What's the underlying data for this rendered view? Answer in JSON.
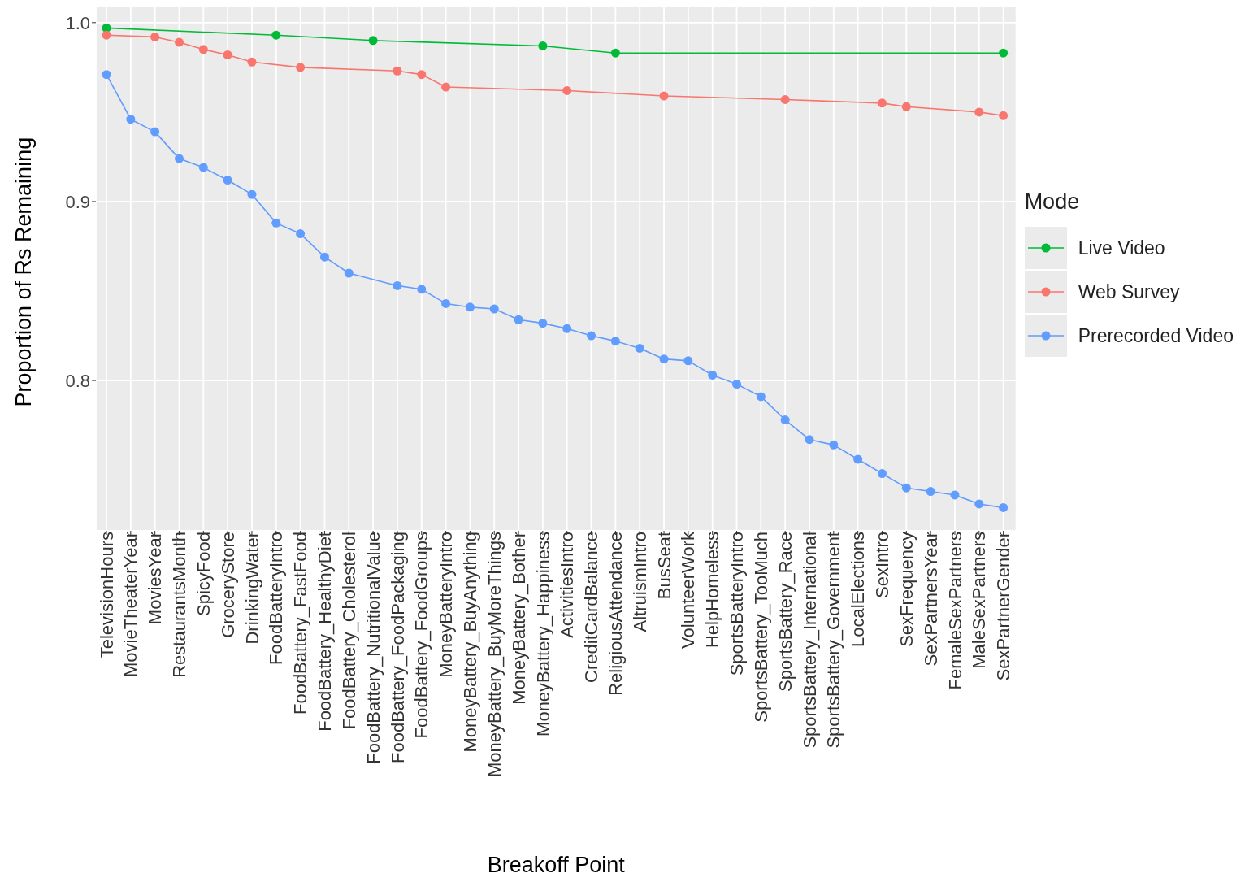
{
  "chart_data": {
    "type": "line",
    "xlabel": "Breakoff Point",
    "ylabel": "Proportion of Rs Remaining",
    "legend_title": "Mode",
    "categories": [
      "TelevisionHours",
      "MovieTheaterYear",
      "MoviesYear",
      "RestaurantsMonth",
      "SpicyFood",
      "GroceryStore",
      "DrinkingWater",
      "FoodBatteryIntro",
      "FoodBattery_FastFood",
      "FoodBattery_HealthyDiet",
      "FoodBattery_Cholesterol",
      "FoodBattery_NutritionalValue",
      "FoodBattery_FoodPackaging",
      "FoodBattery_FoodGroups",
      "MoneyBatteryIntro",
      "MoneyBattery_BuyAnything",
      "MoneyBattery_BuyMoreThings",
      "MoneyBattery_Bother",
      "MoneyBattery_Happiness",
      "ActivitiesIntro",
      "CreditCardBalance",
      "ReligiousAttendance",
      "AltruismIntro",
      "BusSeat",
      "VolunteerWork",
      "HelpHomeless",
      "SportsBatteryIntro",
      "SportsBattery_TooMuch",
      "SportsBattery_Race",
      "SportsBattery_International",
      "SportsBattery_Government",
      "LocalElections",
      "SexIntro",
      "SexFrequency",
      "SexPartnersYear",
      "FemaleSexPartners",
      "MaleSexPartners",
      "SexPartnerGender"
    ],
    "series": [
      {
        "name": "Live Video",
        "color": "#00ba38",
        "values": [
          0.997,
          null,
          null,
          null,
          null,
          null,
          null,
          0.993,
          null,
          null,
          null,
          0.99,
          null,
          null,
          null,
          null,
          null,
          null,
          0.987,
          null,
          null,
          0.983,
          null,
          null,
          null,
          null,
          null,
          null,
          null,
          null,
          null,
          null,
          null,
          null,
          null,
          null,
          null,
          0.983
        ]
      },
      {
        "name": "Web Survey",
        "color": "#f8766d",
        "values": [
          0.993,
          null,
          0.992,
          0.989,
          0.985,
          0.982,
          0.978,
          null,
          0.975,
          null,
          null,
          null,
          0.973,
          0.971,
          0.964,
          null,
          null,
          null,
          null,
          0.962,
          null,
          null,
          null,
          0.959,
          null,
          null,
          null,
          null,
          0.957,
          null,
          null,
          null,
          0.955,
          0.953,
          null,
          null,
          0.95,
          0.948
        ]
      },
      {
        "name": "Prerecorded Video",
        "color": "#619cff",
        "values": [
          0.971,
          0.946,
          0.939,
          0.924,
          0.919,
          0.912,
          0.904,
          0.888,
          0.882,
          0.869,
          0.86,
          null,
          0.853,
          0.851,
          0.843,
          0.841,
          0.84,
          0.834,
          0.832,
          0.829,
          0.825,
          0.822,
          0.818,
          0.812,
          0.811,
          0.803,
          0.798,
          0.791,
          0.778,
          0.767,
          0.764,
          0.756,
          0.748,
          0.74,
          0.738,
          0.736,
          0.731,
          0.729
        ]
      }
    ],
    "ylim": [
      0.716,
      1.009
    ],
    "yticks": [
      {
        "value": 0.8,
        "label": "0.8"
      },
      {
        "value": 0.9,
        "label": "0.9"
      },
      {
        "value": 1.0,
        "label": "1.0"
      }
    ],
    "grid": true,
    "legend": "right",
    "marker": "circle",
    "line_style": "solid"
  }
}
